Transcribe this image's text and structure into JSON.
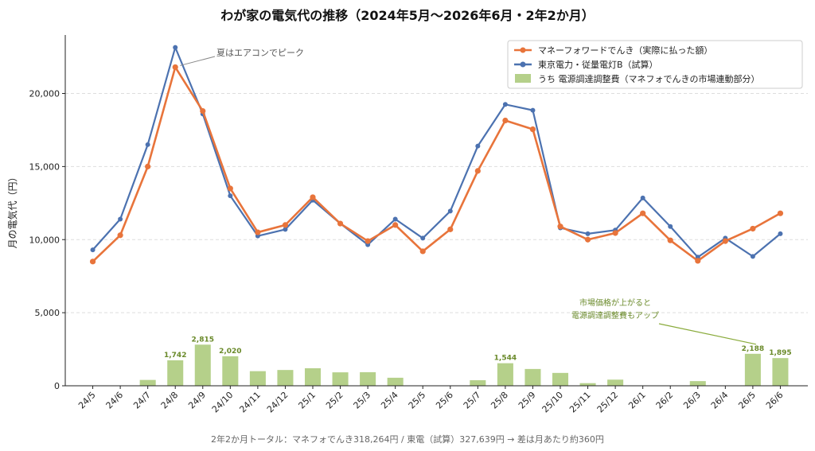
{
  "chart_data": {
    "type": "line",
    "title": "わが家の電気代の推移（2024年5月〜2026年6月・2年2か月）",
    "ylabel": "月の電気代（円）",
    "xlabel": "",
    "ylim": [
      0,
      24000
    ],
    "yticks": [
      0,
      5000,
      10000,
      15000,
      20000
    ],
    "ytick_labels": [
      "0",
      "5,000",
      "10,000",
      "15,000",
      "20,000"
    ],
    "grid": "horizontal-dashed",
    "legend_position": "top-right",
    "categories": [
      "24/5",
      "24/6",
      "24/7",
      "24/8",
      "24/9",
      "24/10",
      "24/11",
      "24/12",
      "25/1",
      "25/2",
      "25/3",
      "25/4",
      "25/5",
      "25/6",
      "25/7",
      "25/8",
      "25/9",
      "25/10",
      "25/11",
      "25/12",
      "26/1",
      "26/2",
      "26/3",
      "26/4",
      "26/5",
      "26/6"
    ],
    "series": [
      {
        "name": "マネーフォワードでんき（実際に払った額）",
        "kind": "line",
        "color": "#e8743b",
        "values": [
          8500,
          10300,
          15000,
          21800,
          18800,
          13500,
          10500,
          11000,
          12900,
          11100,
          9900,
          11000,
          9200,
          10700,
          14700,
          18150,
          17550,
          10900,
          10000,
          10450,
          11800,
          9950,
          8550,
          9900,
          10750,
          11800
        ]
      },
      {
        "name": "東京電力・従量電灯B（試算）",
        "kind": "line",
        "color": "#4c72b0",
        "values": [
          9300,
          11400,
          16500,
          23150,
          18600,
          13000,
          10250,
          10700,
          12700,
          11100,
          9650,
          11400,
          10100,
          11950,
          16400,
          19250,
          18850,
          10800,
          10400,
          10650,
          12850,
          10900,
          8800,
          10100,
          8850,
          10400
        ]
      },
      {
        "name": "うち 電源調達調整費（マネフォでんきの市場連動部分）",
        "kind": "bar",
        "color": "#b5d08a",
        "values": [
          0,
          0,
          400,
          1742,
          2815,
          2020,
          1000,
          1080,
          1200,
          920,
          930,
          550,
          0,
          0,
          380,
          1544,
          1150,
          880,
          180,
          420,
          0,
          0,
          320,
          0,
          2188,
          1895
        ],
        "labels": {
          "3": "1,742",
          "4": "2,815",
          "5": "2,020",
          "15": "1,544",
          "24": "2,188",
          "25": "1,895"
        }
      }
    ],
    "annotations": [
      {
        "text": "夏はエアコンでピーク",
        "target_index": 3,
        "series": 0
      },
      {
        "text_lines": [
          "市場価格が上がると",
          "電源調達調整費もアップ"
        ],
        "target_index": 24,
        "series": 2
      }
    ],
    "footer": "2年2か月トータル：マネフォでんき318,264円 / 東電（試算）327,639円 → 差は月あたり約360円"
  }
}
